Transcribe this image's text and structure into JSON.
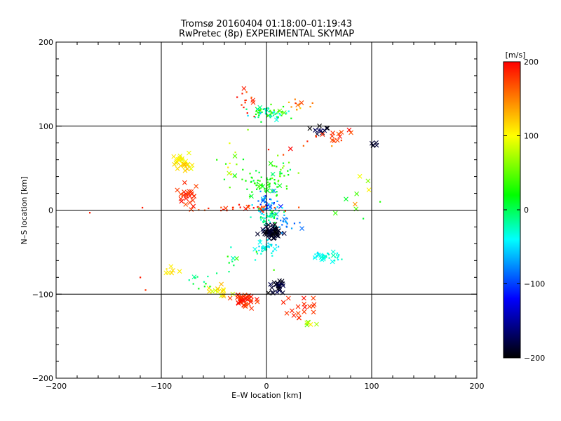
{
  "chart_data": {
    "type": "scatter",
    "title": "Tromsø 20160404 01:18:00–01:19:43",
    "subtitle": "RwPretec (8p) EXPERIMENTAL SKYMAP",
    "xlabel": "E–W location [km]",
    "ylabel": "N–S location [km]",
    "xlim": [
      -200,
      200
    ],
    "ylim": [
      -200,
      200
    ],
    "x_ticks": [
      "−200",
      "−100",
      "0",
      "100",
      "200"
    ],
    "y_ticks": [
      "−200",
      "−100",
      "0",
      "100",
      "200"
    ],
    "grid": true,
    "colorbar": {
      "label": "[m/s]",
      "range": [
        -200,
        200
      ],
      "ticks": [
        "200",
        "100",
        "0",
        "−100",
        "−200"
      ],
      "colormap": [
        "#000000",
        "#0000ff",
        "#00ffff",
        "#00ff00",
        "#ffff00",
        "#ff0000"
      ]
    },
    "clusters": [
      {
        "cx": 0,
        "cy": 115,
        "sx": 14,
        "sy": 8,
        "n": 70,
        "v": [
          -60,
          60
        ],
        "marker": "dot"
      },
      {
        "cx": -20,
        "cy": 130,
        "sx": 8,
        "sy": 12,
        "n": 14,
        "v": [
          150,
          200
        ],
        "marker": "dot"
      },
      {
        "cx": 30,
        "cy": 125,
        "sx": 10,
        "sy": 8,
        "n": 12,
        "v": [
          90,
          190
        ],
        "marker": "dot"
      },
      {
        "cx": 50,
        "cy": 95,
        "sx": 8,
        "sy": 6,
        "n": 10,
        "v": [
          -200,
          -170
        ],
        "marker": "cross"
      },
      {
        "cx": 70,
        "cy": 90,
        "sx": 12,
        "sy": 8,
        "n": 10,
        "v": [
          160,
          200
        ],
        "marker": "cross"
      },
      {
        "cx": 102,
        "cy": 78,
        "sx": 4,
        "sy": 4,
        "n": 5,
        "v": [
          -200,
          -180
        ],
        "marker": "cross"
      },
      {
        "cx": -80,
        "cy": 55,
        "sx": 8,
        "sy": 8,
        "n": 30,
        "v": [
          90,
          130
        ],
        "marker": "cross"
      },
      {
        "cx": -75,
        "cy": 20,
        "sx": 8,
        "sy": 14,
        "n": 24,
        "v": [
          170,
          200
        ],
        "marker": "cross"
      },
      {
        "cx": -20,
        "cy": 2,
        "sx": 28,
        "sy": 3,
        "n": 30,
        "v": [
          160,
          200
        ],
        "marker": "dot"
      },
      {
        "cx": -5,
        "cy": 30,
        "sx": 18,
        "sy": 12,
        "n": 55,
        "v": [
          0,
          40
        ],
        "marker": "dot"
      },
      {
        "cx": 15,
        "cy": 45,
        "sx": 10,
        "sy": 12,
        "n": 25,
        "v": [
          -10,
          70
        ],
        "marker": "dot"
      },
      {
        "cx": 0,
        "cy": 5,
        "sx": 8,
        "sy": 12,
        "n": 45,
        "v": [
          -120,
          -40
        ],
        "marker": "dot"
      },
      {
        "cx": 0,
        "cy": -10,
        "sx": 10,
        "sy": 10,
        "n": 45,
        "v": [
          -40,
          20
        ],
        "marker": "dot"
      },
      {
        "cx": 5,
        "cy": -27,
        "sx": 8,
        "sy": 6,
        "n": 55,
        "v": [
          -200,
          -180
        ],
        "marker": "cross"
      },
      {
        "cx": 0,
        "cy": -45,
        "sx": 10,
        "sy": 6,
        "n": 30,
        "v": [
          -60,
          -20
        ],
        "marker": "dot"
      },
      {
        "cx": 55,
        "cy": -55,
        "sx": 12,
        "sy": 5,
        "n": 40,
        "v": [
          -50,
          -20
        ],
        "marker": "dot"
      },
      {
        "cx": 10,
        "cy": -90,
        "sx": 7,
        "sy": 8,
        "n": 25,
        "v": [
          -200,
          -170
        ],
        "marker": "cross"
      },
      {
        "cx": -20,
        "cy": -108,
        "sx": 10,
        "sy": 7,
        "n": 40,
        "v": [
          170,
          200
        ],
        "marker": "cross"
      },
      {
        "cx": -45,
        "cy": -100,
        "sx": 10,
        "sy": 8,
        "n": 15,
        "v": [
          80,
          130
        ],
        "marker": "cross"
      },
      {
        "cx": 35,
        "cy": -115,
        "sx": 20,
        "sy": 10,
        "n": 18,
        "v": [
          170,
          200
        ],
        "marker": "cross"
      },
      {
        "cx": -65,
        "cy": -85,
        "sx": 12,
        "sy": 10,
        "n": 12,
        "v": [
          -20,
          20
        ],
        "marker": "dot"
      },
      {
        "cx": -90,
        "cy": -75,
        "sx": 5,
        "sy": 6,
        "n": 6,
        "v": [
          90,
          120
        ],
        "marker": "cross"
      },
      {
        "cx": 45,
        "cy": -135,
        "sx": 8,
        "sy": 5,
        "n": 6,
        "v": [
          40,
          110
        ],
        "marker": "cross"
      },
      {
        "cx": 20,
        "cy": -15,
        "sx": 10,
        "sy": 8,
        "n": 18,
        "v": [
          -100,
          -60
        ],
        "marker": "dot"
      },
      {
        "cx": -35,
        "cy": 60,
        "sx": 15,
        "sy": 25,
        "n": 16,
        "v": [
          -20,
          120
        ],
        "marker": "dot"
      },
      {
        "cx": 40,
        "cy": 80,
        "sx": 30,
        "sy": 10,
        "n": 10,
        "v": [
          140,
          200
        ],
        "marker": "dot"
      },
      {
        "cx": 80,
        "cy": 20,
        "sx": 20,
        "sy": 30,
        "n": 8,
        "v": [
          -10,
          150
        ],
        "marker": "cross"
      },
      {
        "cx": -20,
        "cy": -60,
        "sx": 30,
        "sy": 15,
        "n": 14,
        "v": [
          -40,
          40
        ],
        "marker": "dot"
      }
    ],
    "outliers": [
      {
        "x": -168,
        "y": -3,
        "v": 190
      },
      {
        "x": -118,
        "y": 3,
        "v": 190
      },
      {
        "x": -120,
        "y": -80,
        "v": 190
      },
      {
        "x": -115,
        "y": -95,
        "v": 180
      },
      {
        "x": -95,
        "y": -70,
        "v": 110
      },
      {
        "x": 108,
        "y": 10,
        "v": 30
      },
      {
        "x": 92,
        "y": -10,
        "v": 10
      }
    ]
  }
}
